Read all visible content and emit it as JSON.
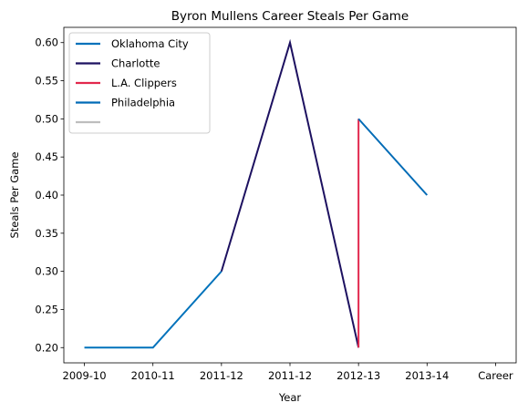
{
  "chart_data": {
    "type": "line",
    "title": "Byron Mullens Career Steals Per Game",
    "xlabel": "Year",
    "ylabel": "Steals Per Game",
    "x_tick_labels": [
      "2009-10",
      "2010-11",
      "2011-12",
      "2011-12",
      "2012-13",
      "2013-14",
      "Career"
    ],
    "x_tick_positions": [
      0,
      1,
      2,
      3,
      4,
      5,
      6
    ],
    "xlim": [
      -0.3,
      6.3
    ],
    "ylim": [
      0.18,
      0.62
    ],
    "y_ticks": [
      0.2,
      0.25,
      0.3,
      0.35,
      0.4,
      0.45,
      0.5,
      0.55,
      0.6
    ],
    "grid": false,
    "legend_position": "upper-left",
    "series": [
      {
        "name": "Oklahoma City",
        "color": "#0072BB",
        "points": [
          [
            0,
            0.2
          ],
          [
            1,
            0.2
          ],
          [
            2,
            0.3
          ]
        ]
      },
      {
        "name": "Charlotte",
        "color": "#1D1160",
        "points": [
          [
            2,
            0.3
          ],
          [
            3,
            0.6
          ],
          [
            4,
            0.2
          ]
        ]
      },
      {
        "name": "L.A. Clippers",
        "color": "#E2284D",
        "points": [
          [
            4,
            0.2
          ],
          [
            4,
            0.5
          ]
        ]
      },
      {
        "name": "Philadelphia",
        "color": "#006BB6",
        "points": [
          [
            4,
            0.5
          ],
          [
            5,
            0.4
          ]
        ]
      },
      {
        "name": "",
        "color": "#BEBEBE",
        "points": []
      }
    ]
  }
}
